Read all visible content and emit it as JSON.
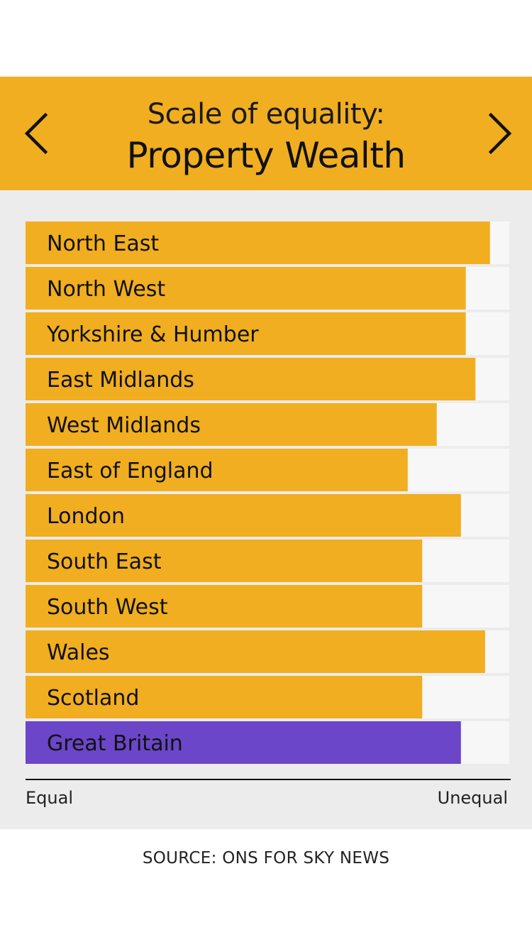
{
  "header": {
    "title_line1": "Scale of equality:",
    "title_line2": "Property Wealth",
    "prev_icon": "chevron-left-icon",
    "next_icon": "chevron-right-icon"
  },
  "axis": {
    "left_label": "Equal",
    "right_label": "Unequal"
  },
  "source": "SOURCE: ONS FOR SKY NEWS",
  "colors": {
    "header_bg": "#f0ae20",
    "bar": "#f0ae20",
    "highlight_bar": "#6b46c8",
    "track": "#f7f7f7",
    "panel_bg": "#ececec"
  },
  "chart_data": {
    "type": "bar",
    "orientation": "horizontal",
    "title": "Scale of equality: Property Wealth",
    "xlabel_left": "Equal",
    "xlabel_right": "Unequal",
    "xlim": [
      0,
      1
    ],
    "categories": [
      "North East",
      "North West",
      "Yorkshire & Humber",
      "East Midlands",
      "West Midlands",
      "East of England",
      "London",
      "South East",
      "South West",
      "Wales",
      "Scotland",
      "Great Britain"
    ],
    "values": [
      0.96,
      0.91,
      0.91,
      0.93,
      0.85,
      0.79,
      0.9,
      0.82,
      0.82,
      0.95,
      0.82,
      0.9
    ],
    "highlight": "Great Britain"
  }
}
